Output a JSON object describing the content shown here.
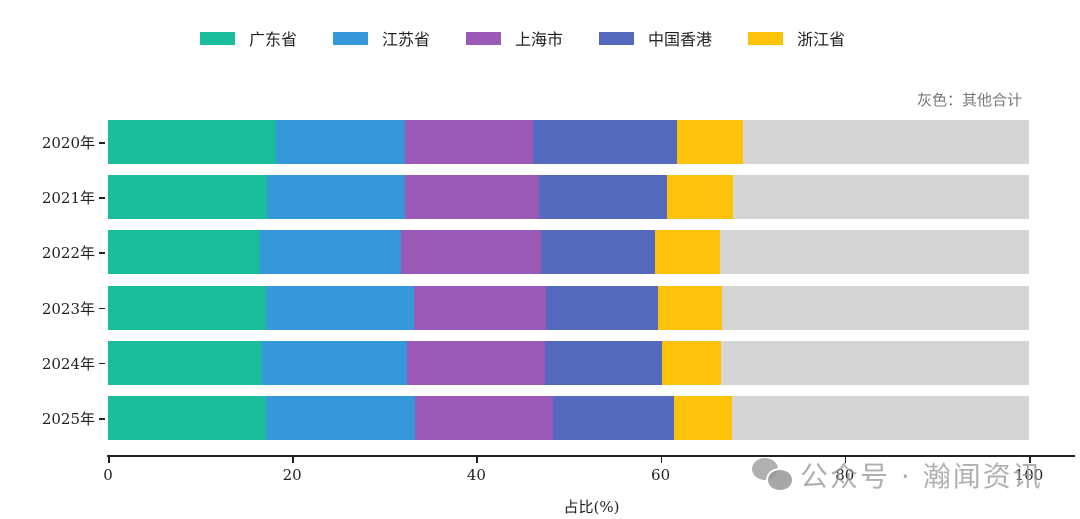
{
  "legend": [
    {
      "label": "广东省",
      "color": "#1abc9c"
    },
    {
      "label": "江苏省",
      "color": "#3498db"
    },
    {
      "label": "上海市",
      "color": "#9b59b6"
    },
    {
      "label": "中国香港",
      "color": "#5468be"
    },
    {
      "label": "浙江省",
      "color": "#fdc20a"
    }
  ],
  "note": "灰色：其他合计",
  "other_color": "#d5d5d3",
  "watermark": "公众号 · 瀚闻资讯",
  "chart_data": {
    "type": "bar",
    "orientation": "horizontal",
    "stacked": true,
    "title": "",
    "xlabel": "占比(%)",
    "ylabel": "",
    "xlim": [
      0,
      100
    ],
    "xticks": [
      0,
      20,
      40,
      60,
      80,
      100
    ],
    "categories": [
      "2020年",
      "2021年",
      "2022年",
      "2023年",
      "2024年",
      "2025年"
    ],
    "series": [
      {
        "name": "广东省",
        "color": "#1abc9c",
        "values": [
          18.2,
          17.3,
          16.5,
          17.2,
          16.7,
          17.2
        ]
      },
      {
        "name": "江苏省",
        "color": "#3498db",
        "values": [
          14.1,
          15.0,
          15.3,
          16.0,
          15.8,
          16.1
        ]
      },
      {
        "name": "上海市",
        "color": "#9b59b6",
        "values": [
          13.9,
          14.5,
          15.2,
          14.4,
          14.9,
          15.0
        ]
      },
      {
        "name": "中国香港",
        "color": "#5468be",
        "values": [
          15.6,
          13.9,
          12.4,
          12.1,
          12.8,
          13.2
        ]
      },
      {
        "name": "浙江省",
        "color": "#fdc20a",
        "values": [
          7.2,
          7.2,
          7.1,
          7.0,
          6.4,
          6.3
        ]
      },
      {
        "name": "其他合计",
        "color": "#d5d5d3",
        "values": [
          31.0,
          32.1,
          33.5,
          33.3,
          33.4,
          32.2
        ]
      }
    ],
    "annotation": "灰色：其他合计",
    "legend_position": "top",
    "grid": false
  }
}
